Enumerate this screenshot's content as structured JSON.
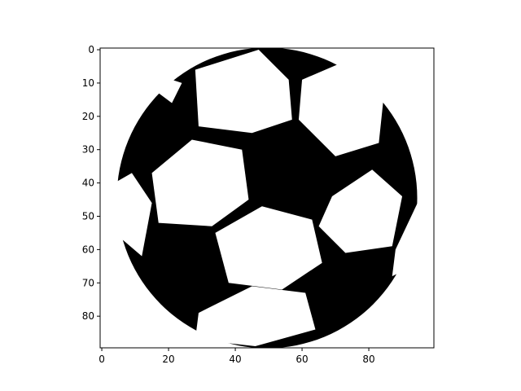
{
  "chart_data": {
    "type": "heatmap",
    "title": "",
    "xlabel": "",
    "ylabel": "",
    "xlim": [
      0,
      99
    ],
    "ylim": [
      89,
      0
    ],
    "x_ticks": [
      "0",
      "20",
      "40",
      "60",
      "80"
    ],
    "y_ticks": [
      "0",
      "10",
      "20",
      "30",
      "40",
      "50",
      "60",
      "70",
      "80"
    ],
    "colormap": [
      "#ffffff",
      "#000000"
    ],
    "image_size": {
      "width": 100,
      "height": 90
    },
    "content": "binary raster image of a soccer ball (black panels and outline on white)",
    "ball": {
      "center": [
        49.5,
        44.5
      ],
      "radius": 45
    },
    "white_panels": [
      [
        [
          28,
          6
        ],
        [
          47,
          0
        ],
        [
          56,
          9
        ],
        [
          57,
          21
        ],
        [
          45,
          25
        ],
        [
          29,
          23
        ]
      ],
      [
        [
          60,
          9
        ],
        [
          74,
          3
        ],
        [
          85,
          9
        ],
        [
          83,
          28
        ],
        [
          70,
          32
        ],
        [
          59,
          21
        ]
      ],
      [
        [
          15,
          37
        ],
        [
          27,
          27
        ],
        [
          42,
          30
        ],
        [
          44,
          45
        ],
        [
          33,
          53
        ],
        [
          17,
          52
        ]
      ],
      [
        [
          34,
          55
        ],
        [
          48,
          47
        ],
        [
          63,
          51
        ],
        [
          66,
          64
        ],
        [
          54,
          72
        ],
        [
          38,
          70
        ]
      ],
      [
        [
          69,
          44
        ],
        [
          81,
          36
        ],
        [
          90,
          44
        ],
        [
          87,
          59
        ],
        [
          73,
          61
        ],
        [
          65,
          53
        ]
      ],
      [
        [
          29,
          79
        ],
        [
          45,
          71
        ],
        [
          61,
          73
        ],
        [
          64,
          84
        ],
        [
          46,
          89
        ],
        [
          28,
          87
        ]
      ],
      [
        [
          2,
          41
        ],
        [
          9,
          37
        ],
        [
          15,
          46
        ],
        [
          12,
          62
        ],
        [
          5,
          56
        ]
      ],
      [
        [
          88,
          60
        ],
        [
          96,
          43
        ],
        [
          99,
          45
        ],
        [
          93,
          65
        ],
        [
          87,
          68
        ]
      ],
      [
        [
          17,
          13
        ],
        [
          21,
          9
        ],
        [
          24,
          10
        ],
        [
          21,
          16
        ]
      ]
    ]
  }
}
